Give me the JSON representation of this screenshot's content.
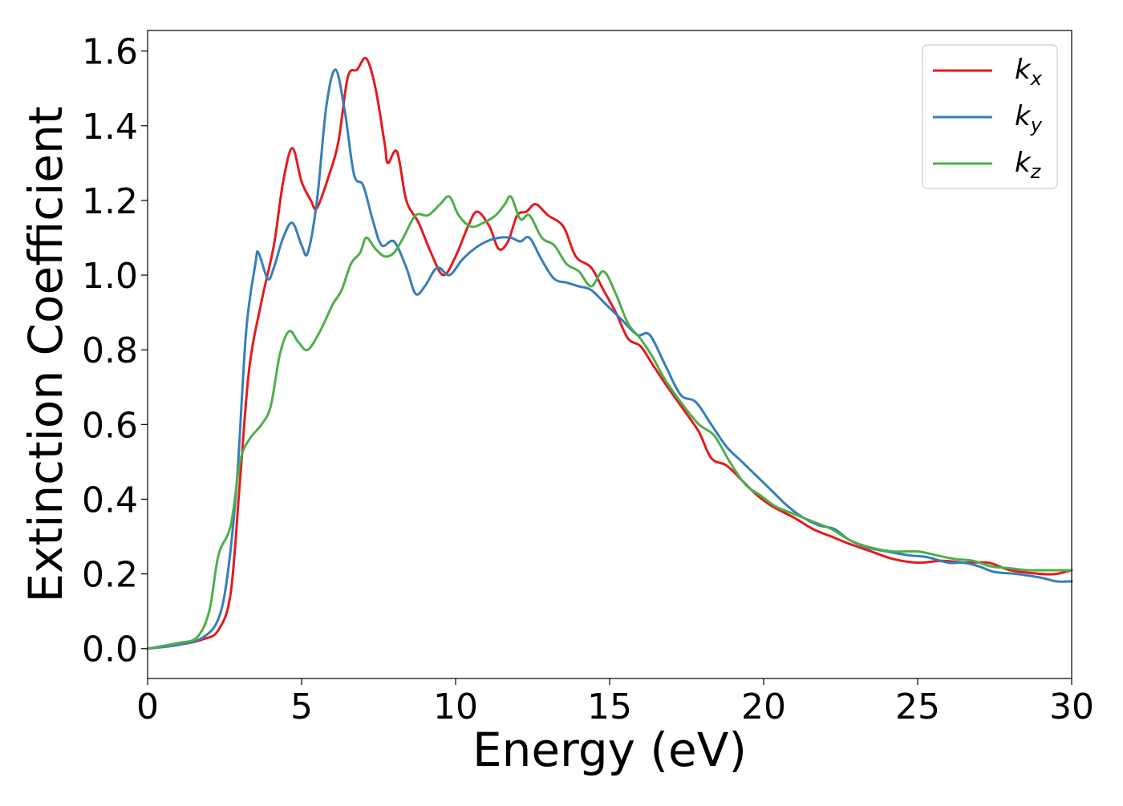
{
  "chart_data": {
    "type": "line",
    "title": "",
    "xlabel": "Energy (eV)",
    "ylabel": "Extinction Coefficient",
    "xlim": [
      0,
      30
    ],
    "ylim": [
      -0.08,
      1.655
    ],
    "xticks": [
      0,
      5,
      10,
      15,
      20,
      25,
      30
    ],
    "xtick_labels": [
      "0",
      "5",
      "10",
      "15",
      "20",
      "25",
      "30"
    ],
    "yticks": [
      0.0,
      0.2,
      0.4,
      0.6,
      0.8,
      1.0,
      1.2,
      1.4,
      1.6
    ],
    "ytick_labels": [
      "0.0",
      "0.2",
      "0.4",
      "0.6",
      "0.8",
      "1.0",
      "1.2",
      "1.4",
      "1.6"
    ],
    "grid": false,
    "legend_position": "top-right",
    "series": [
      {
        "name": "k_x",
        "label_main": "k",
        "label_sub": "x",
        "color": "#e41a1c",
        "points": [
          [
            0,
            0.0
          ],
          [
            1,
            0.01
          ],
          [
            1.8,
            0.025
          ],
          [
            2.3,
            0.05
          ],
          [
            2.7,
            0.15
          ],
          [
            3.0,
            0.45
          ],
          [
            3.3,
            0.75
          ],
          [
            3.7,
            0.93
          ],
          [
            4.1,
            1.08
          ],
          [
            4.4,
            1.25
          ],
          [
            4.7,
            1.34
          ],
          [
            5.0,
            1.25
          ],
          [
            5.3,
            1.2
          ],
          [
            5.5,
            1.18
          ],
          [
            5.9,
            1.27
          ],
          [
            6.2,
            1.36
          ],
          [
            6.5,
            1.53
          ],
          [
            6.8,
            1.55
          ],
          [
            7.1,
            1.58
          ],
          [
            7.4,
            1.5
          ],
          [
            7.7,
            1.35
          ],
          [
            7.8,
            1.3
          ],
          [
            8.1,
            1.33
          ],
          [
            8.4,
            1.2
          ],
          [
            8.8,
            1.14
          ],
          [
            9.2,
            1.06
          ],
          [
            9.6,
            1.0
          ],
          [
            10.0,
            1.05
          ],
          [
            10.4,
            1.13
          ],
          [
            10.7,
            1.17
          ],
          [
            11.1,
            1.13
          ],
          [
            11.4,
            1.07
          ],
          [
            11.7,
            1.09
          ],
          [
            12.0,
            1.16
          ],
          [
            12.3,
            1.17
          ],
          [
            12.6,
            1.19
          ],
          [
            13.0,
            1.16
          ],
          [
            13.5,
            1.13
          ],
          [
            13.9,
            1.05
          ],
          [
            14.4,
            1.02
          ],
          [
            14.8,
            0.96
          ],
          [
            15.2,
            0.9
          ],
          [
            15.6,
            0.83
          ],
          [
            16.0,
            0.81
          ],
          [
            16.4,
            0.76
          ],
          [
            16.8,
            0.71
          ],
          [
            17.4,
            0.64
          ],
          [
            17.9,
            0.58
          ],
          [
            18.3,
            0.51
          ],
          [
            18.8,
            0.49
          ],
          [
            19.3,
            0.45
          ],
          [
            19.8,
            0.41
          ],
          [
            20.3,
            0.38
          ],
          [
            21.0,
            0.35
          ],
          [
            21.6,
            0.32
          ],
          [
            22.2,
            0.3
          ],
          [
            22.8,
            0.28
          ],
          [
            23.5,
            0.26
          ],
          [
            24.2,
            0.24
          ],
          [
            25.0,
            0.23
          ],
          [
            25.8,
            0.235
          ],
          [
            26.5,
            0.23
          ],
          [
            27.3,
            0.23
          ],
          [
            28.0,
            0.21
          ],
          [
            29.0,
            0.2
          ],
          [
            29.5,
            0.2
          ],
          [
            30.0,
            0.21
          ]
        ]
      },
      {
        "name": "k_y",
        "label_main": "k",
        "label_sub": "y",
        "color": "#377eb8",
        "points": [
          [
            0,
            0.0
          ],
          [
            1,
            0.01
          ],
          [
            1.8,
            0.03
          ],
          [
            2.3,
            0.08
          ],
          [
            2.6,
            0.2
          ],
          [
            2.9,
            0.45
          ],
          [
            3.2,
            0.85
          ],
          [
            3.5,
            1.03
          ],
          [
            3.6,
            1.06
          ],
          [
            3.9,
            0.99
          ],
          [
            4.1,
            1.02
          ],
          [
            4.4,
            1.1
          ],
          [
            4.7,
            1.14
          ],
          [
            5.0,
            1.08
          ],
          [
            5.2,
            1.06
          ],
          [
            5.5,
            1.2
          ],
          [
            5.8,
            1.45
          ],
          [
            6.1,
            1.55
          ],
          [
            6.4,
            1.44
          ],
          [
            6.7,
            1.27
          ],
          [
            7.0,
            1.24
          ],
          [
            7.3,
            1.15
          ],
          [
            7.6,
            1.08
          ],
          [
            8.0,
            1.09
          ],
          [
            8.4,
            1.02
          ],
          [
            8.7,
            0.95
          ],
          [
            9.0,
            0.97
          ],
          [
            9.4,
            1.02
          ],
          [
            9.8,
            1.0
          ],
          [
            10.2,
            1.04
          ],
          [
            10.6,
            1.07
          ],
          [
            11.0,
            1.09
          ],
          [
            11.4,
            1.1
          ],
          [
            11.8,
            1.1
          ],
          [
            12.1,
            1.09
          ],
          [
            12.4,
            1.1
          ],
          [
            12.8,
            1.04
          ],
          [
            13.2,
            0.99
          ],
          [
            13.6,
            0.98
          ],
          [
            14.0,
            0.97
          ],
          [
            14.4,
            0.96
          ],
          [
            14.9,
            0.92
          ],
          [
            15.4,
            0.88
          ],
          [
            15.9,
            0.84
          ],
          [
            16.3,
            0.84
          ],
          [
            16.8,
            0.76
          ],
          [
            17.3,
            0.68
          ],
          [
            17.8,
            0.66
          ],
          [
            18.3,
            0.6
          ],
          [
            18.8,
            0.54
          ],
          [
            19.3,
            0.5
          ],
          [
            19.8,
            0.46
          ],
          [
            20.3,
            0.42
          ],
          [
            20.8,
            0.38
          ],
          [
            21.3,
            0.35
          ],
          [
            21.8,
            0.33
          ],
          [
            22.3,
            0.32
          ],
          [
            22.8,
            0.29
          ],
          [
            23.4,
            0.27
          ],
          [
            24.0,
            0.26
          ],
          [
            24.7,
            0.25
          ],
          [
            25.3,
            0.245
          ],
          [
            26.0,
            0.23
          ],
          [
            26.5,
            0.23
          ],
          [
            27.0,
            0.22
          ],
          [
            27.5,
            0.205
          ],
          [
            28.2,
            0.2
          ],
          [
            29.0,
            0.19
          ],
          [
            29.5,
            0.18
          ],
          [
            30.0,
            0.18
          ]
        ]
      },
      {
        "name": "k_z",
        "label_main": "k",
        "label_sub": "z",
        "color": "#4daf4a",
        "points": [
          [
            0,
            0.0
          ],
          [
            1,
            0.015
          ],
          [
            1.6,
            0.03
          ],
          [
            2.0,
            0.1
          ],
          [
            2.3,
            0.25
          ],
          [
            2.7,
            0.33
          ],
          [
            3.0,
            0.5
          ],
          [
            3.3,
            0.56
          ],
          [
            3.7,
            0.6
          ],
          [
            4.0,
            0.65
          ],
          [
            4.3,
            0.79
          ],
          [
            4.6,
            0.85
          ],
          [
            4.9,
            0.82
          ],
          [
            5.2,
            0.8
          ],
          [
            5.6,
            0.85
          ],
          [
            6.0,
            0.92
          ],
          [
            6.3,
            0.96
          ],
          [
            6.6,
            1.03
          ],
          [
            6.9,
            1.06
          ],
          [
            7.1,
            1.1
          ],
          [
            7.4,
            1.07
          ],
          [
            7.7,
            1.05
          ],
          [
            8.0,
            1.06
          ],
          [
            8.3,
            1.1
          ],
          [
            8.7,
            1.16
          ],
          [
            9.1,
            1.16
          ],
          [
            9.5,
            1.19
          ],
          [
            9.8,
            1.21
          ],
          [
            10.1,
            1.16
          ],
          [
            10.5,
            1.13
          ],
          [
            10.9,
            1.14
          ],
          [
            11.3,
            1.16
          ],
          [
            11.6,
            1.19
          ],
          [
            11.8,
            1.21
          ],
          [
            12.1,
            1.15
          ],
          [
            12.4,
            1.16
          ],
          [
            12.8,
            1.1
          ],
          [
            13.2,
            1.08
          ],
          [
            13.6,
            1.03
          ],
          [
            14.0,
            1.01
          ],
          [
            14.4,
            0.97
          ],
          [
            14.8,
            1.01
          ],
          [
            15.2,
            0.95
          ],
          [
            15.6,
            0.87
          ],
          [
            16.0,
            0.83
          ],
          [
            16.4,
            0.78
          ],
          [
            16.8,
            0.72
          ],
          [
            17.4,
            0.65
          ],
          [
            17.9,
            0.6
          ],
          [
            18.4,
            0.57
          ],
          [
            18.9,
            0.5
          ],
          [
            19.4,
            0.44
          ],
          [
            19.9,
            0.41
          ],
          [
            20.4,
            0.38
          ],
          [
            21.0,
            0.36
          ],
          [
            21.6,
            0.34
          ],
          [
            22.2,
            0.32
          ],
          [
            22.8,
            0.29
          ],
          [
            23.5,
            0.27
          ],
          [
            24.2,
            0.26
          ],
          [
            25.0,
            0.26
          ],
          [
            25.6,
            0.25
          ],
          [
            26.2,
            0.24
          ],
          [
            26.8,
            0.235
          ],
          [
            27.4,
            0.22
          ],
          [
            28.0,
            0.215
          ],
          [
            28.6,
            0.21
          ],
          [
            29.2,
            0.21
          ],
          [
            30.0,
            0.21
          ]
        ]
      }
    ]
  }
}
